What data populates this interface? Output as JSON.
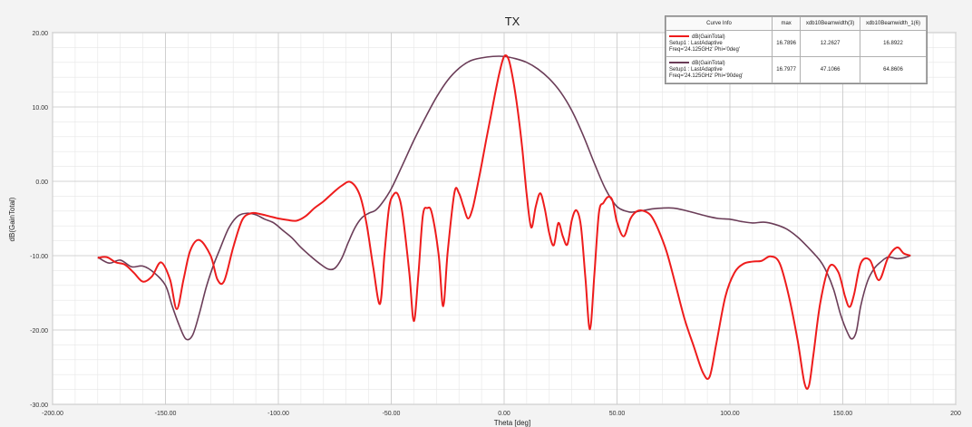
{
  "chart_data": {
    "type": "line",
    "title": "TX",
    "xlabel": "Theta [deg]",
    "ylabel": "dB(GainTotal)",
    "xlim": [
      -200,
      200
    ],
    "ylim": [
      -30,
      20
    ],
    "xticks": [
      -200,
      -150,
      -100,
      -50,
      0,
      50,
      100,
      150,
      200
    ],
    "xtick_labels": [
      "-200.00",
      "-150.00",
      "-100.00",
      "-50.00",
      "0.00",
      "50.00",
      "100.00",
      "150.00",
      "200"
    ],
    "yticks": [
      20,
      10,
      0,
      -10,
      -20,
      -30
    ],
    "ytick_labels": [
      "20.00",
      "10.00",
      "0.00",
      "-10.00",
      "-20.00",
      "-30.00"
    ],
    "grid": true,
    "legend_position": "top-right",
    "series": [
      {
        "name": "dB(GainTotal)",
        "color": "#ee1c1c",
        "x": [
          -180,
          -176,
          -172,
          -168,
          -164,
          -160,
          -156,
          -152,
          -148,
          -145,
          -142,
          -139,
          -135,
          -130,
          -127,
          -124,
          -120,
          -116,
          -112,
          -108,
          -104,
          -100,
          -96,
          -92,
          -88,
          -84,
          -80,
          -76,
          -72,
          -68,
          -64,
          -61,
          -58,
          -55,
          -53,
          -51,
          -49,
          -47,
          -45,
          -42,
          -40,
          -38,
          -36,
          -34,
          -32,
          -29,
          -27,
          -25,
          -22,
          -20,
          -18,
          -16,
          -14,
          -12,
          -10,
          -8,
          -6,
          -4,
          -2,
          0,
          2,
          4,
          6,
          8,
          10,
          12,
          14,
          16,
          18,
          20,
          22,
          24,
          26,
          28,
          30,
          32,
          34,
          36,
          38,
          40,
          42,
          44,
          46,
          48,
          50,
          53,
          56,
          59,
          62,
          65,
          68,
          72,
          76,
          80,
          84,
          88,
          91,
          94,
          98,
          102,
          106,
          110,
          114,
          118,
          122,
          126,
          130,
          133,
          135,
          137,
          140,
          144,
          148,
          151,
          153,
          155,
          158,
          162,
          166,
          170,
          174,
          177,
          180
        ],
        "y": [
          -10.3,
          -10.2,
          -10.9,
          -11.2,
          -12.3,
          -13.5,
          -12.8,
          -10.9,
          -13.2,
          -17.2,
          -13.2,
          -9.3,
          -7.9,
          -10.0,
          -13.2,
          -13.4,
          -8.9,
          -5.2,
          -4.3,
          -4.4,
          -4.7,
          -5.0,
          -5.2,
          -5.3,
          -4.7,
          -3.6,
          -2.7,
          -1.6,
          -0.6,
          -0.1,
          -1.8,
          -5.6,
          -11.5,
          -16.5,
          -9.8,
          -3.6,
          -1.8,
          -1.8,
          -4.4,
          -12.3,
          -18.8,
          -12.6,
          -4.6,
          -3.6,
          -4.3,
          -9.9,
          -16.8,
          -9.5,
          -1.5,
          -1.6,
          -3.4,
          -5.0,
          -3.7,
          -0.9,
          2.2,
          5.5,
          8.6,
          11.8,
          14.7,
          16.8,
          16.4,
          13.6,
          9.6,
          4.5,
          -1.8,
          -6.2,
          -3.4,
          -1.6,
          -3.7,
          -7.0,
          -8.6,
          -5.6,
          -7.4,
          -8.5,
          -5.2,
          -3.9,
          -6.0,
          -13.0,
          -19.9,
          -12.4,
          -4.2,
          -2.9,
          -2.1,
          -2.6,
          -5.5,
          -7.4,
          -5.0,
          -4.0,
          -4.0,
          -4.6,
          -6.3,
          -9.5,
          -14.0,
          -18.6,
          -22.2,
          -25.7,
          -26.3,
          -21.8,
          -15.5,
          -12.3,
          -11.1,
          -10.8,
          -10.7,
          -10.1,
          -11.0,
          -15.3,
          -21.4,
          -27.1,
          -27.5,
          -23.3,
          -16.4,
          -11.5,
          -12.2,
          -15.5,
          -16.9,
          -15.2,
          -11.0,
          -10.6,
          -13.3,
          -10.3,
          -8.9,
          -9.7,
          -10.0
        ]
      },
      {
        "name": "dB(GainTotal)",
        "color": "#6b3d58",
        "x": [
          -180,
          -175,
          -170,
          -165,
          -160,
          -155,
          -150,
          -147,
          -144,
          -141,
          -138,
          -135,
          -132,
          -129,
          -126,
          -122,
          -118,
          -114,
          -110,
          -106,
          -102,
          -98,
          -94,
          -90,
          -86,
          -82,
          -78,
          -75,
          -72,
          -69,
          -66,
          -63,
          -60,
          -57,
          -54,
          -50,
          -45,
          -40,
          -35,
          -30,
          -25,
          -20,
          -15,
          -10,
          -5,
          0,
          5,
          10,
          15,
          20,
          25,
          30,
          35,
          40,
          45,
          50,
          55,
          58,
          62,
          66,
          70,
          75,
          80,
          85,
          90,
          95,
          100,
          105,
          110,
          115,
          120,
          125,
          130,
          135,
          140,
          143,
          146,
          149,
          152,
          154,
          156,
          158,
          161,
          164,
          167,
          170,
          174,
          177,
          180
        ],
        "y": [
          -10.2,
          -11.0,
          -10.6,
          -11.5,
          -11.4,
          -12.3,
          -14.0,
          -16.8,
          -19.3,
          -21.2,
          -20.7,
          -17.8,
          -14.3,
          -11.5,
          -9.2,
          -6.3,
          -4.7,
          -4.3,
          -4.5,
          -5.1,
          -5.6,
          -6.6,
          -7.6,
          -8.9,
          -10.0,
          -11.0,
          -11.8,
          -11.7,
          -10.4,
          -8.2,
          -6.2,
          -4.9,
          -4.3,
          -3.9,
          -2.9,
          -1.0,
          2.2,
          5.5,
          8.5,
          11.3,
          13.6,
          15.2,
          16.2,
          16.6,
          16.8,
          16.8,
          16.5,
          16.0,
          15.1,
          13.8,
          12.0,
          9.5,
          6.2,
          2.4,
          -1.1,
          -3.4,
          -4.1,
          -4.1,
          -3.9,
          -3.7,
          -3.6,
          -3.6,
          -3.9,
          -4.3,
          -4.7,
          -5.0,
          -5.1,
          -5.4,
          -5.6,
          -5.5,
          -5.8,
          -6.4,
          -7.5,
          -9.0,
          -10.7,
          -12.3,
          -14.6,
          -17.9,
          -20.3,
          -21.2,
          -20.2,
          -16.7,
          -13.4,
          -11.7,
          -10.8,
          -10.2,
          -10.4,
          -10.3,
          -10.0
        ]
      }
    ]
  },
  "legend": {
    "headers": [
      "Curve Info",
      "max",
      "xdb10Beamwidth(3)",
      "xdb10Beamwidth_1(6)"
    ],
    "rows": [
      {
        "name": "dB(GainTotal)",
        "setup": "Setup1 : LastAdaptive",
        "freq": "Freq='24.125GHz' Phi='0deg'",
        "max": "16.7896",
        "bw3": "12.2627",
        "bw6": "16.8922",
        "color": "#ee1c1c"
      },
      {
        "name": "dB(GainTotal)",
        "setup": "Setup1 : LastAdaptive",
        "freq": "Freq='24.125GHz' Phi='90deg'",
        "max": "16.7977",
        "bw3": "47.1066",
        "bw6": "64.8606",
        "color": "#6b3d58"
      }
    ]
  }
}
